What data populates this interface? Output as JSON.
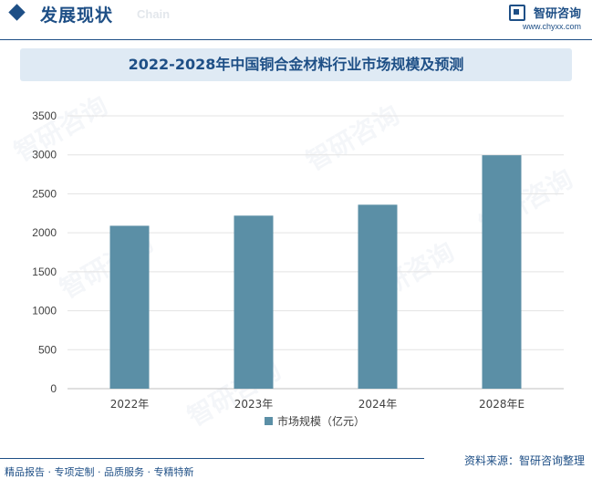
{
  "header": {
    "section_title": "发展现状",
    "section_subtitle": "Chain",
    "logo_name": "智研咨询",
    "logo_url": "www.chyxx.com"
  },
  "chart_data": {
    "type": "bar",
    "title": "2022-2028年中国铜合金材料行业市场规模及预测",
    "categories": [
      "2022年",
      "2023年",
      "2024年",
      "2028年E"
    ],
    "series": [
      {
        "name": "市场规模（亿元）",
        "values": [
          2090,
          2220,
          2360,
          2995
        ],
        "color": "#5b8fa6"
      }
    ],
    "yticks": [
      0,
      500,
      1000,
      1500,
      2000,
      2500,
      3000,
      3500
    ],
    "ylim": [
      0,
      3500
    ],
    "xlabel": "",
    "ylabel": "",
    "grid": true,
    "legend": "bottom-center"
  },
  "watermark": {
    "text": "智研咨询"
  },
  "footer": {
    "left": "精品报告 · 专项定制 · 品质服务 · 专精特新",
    "right": "资料来源：智研咨询整理"
  }
}
